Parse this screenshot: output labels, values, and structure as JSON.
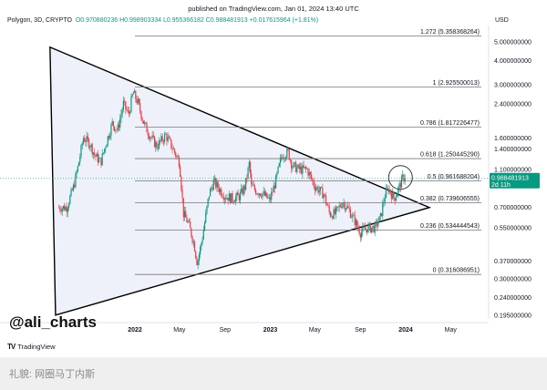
{
  "header": {
    "published": "published on TradingView.com, Jan 01, 2024 13:40 UTC",
    "symbol": "Polygon, 3D, CRYPTO",
    "ohlc_o": "O0.970880236",
    "ohlc_h": "H0.998903334",
    "ohlc_l": "L0.955366182",
    "ohlc_c": "C0.988481913",
    "change": "+0.017615964 (+1.81%)",
    "currency": "USD"
  },
  "chart_data": {
    "type": "line",
    "title": "",
    "xlabel": "",
    "ylabel": "",
    "x_ticks": [
      "2022",
      "May",
      "Sep",
      "2023",
      "May",
      "Sep",
      "2024",
      "May"
    ],
    "x_ticks_bold": [
      true,
      false,
      false,
      true,
      false,
      false,
      true,
      false
    ],
    "y_scale": "log",
    "y_ticks": [
      "5.000000000",
      "4.000000000",
      "3.000000000",
      "2.400000000",
      "1.600000000",
      "1.400000000",
      "1.100000000",
      "0.700000000",
      "0.550000000",
      "0.370000000",
      "0.300000000",
      "0.240000000",
      "0.195000000"
    ],
    "last_price": {
      "value": "0.988481913",
      "countdown": "2d 11h"
    },
    "fib_levels": [
      {
        "label": "1.272 (5.358368264)",
        "value": 5.358368264
      },
      {
        "label": "1 (2.925500013)",
        "value": 2.925500013
      },
      {
        "label": "0.786 (1.817226477)",
        "value": 1.817226477
      },
      {
        "label": "0.618 (1.250445290)",
        "value": 1.25044529
      },
      {
        "label": "0.5 (0.961688204)",
        "value": 0.961688204
      },
      {
        "label": "0.382 (0.739606555)",
        "value": 0.739606555
      },
      {
        "label": "0.236 (0.534444543)",
        "value": 0.534444543
      },
      {
        "label": "0 (0.316086951)",
        "value": 0.316086951
      }
    ],
    "series": [
      {
        "dates": [
          "2021-07-01",
          "2021-07-20",
          "2021-08-01",
          "2021-08-15",
          "2021-09-01",
          "2021-09-15",
          "2021-10-01",
          "2021-10-15",
          "2021-11-01",
          "2021-11-15",
          "2021-12-01",
          "2021-12-15",
          "2021-12-27",
          "2022-01-10",
          "2022-01-25",
          "2022-02-10",
          "2022-03-01",
          "2022-03-25",
          "2022-04-10",
          "2022-05-01",
          "2022-05-12",
          "2022-05-25",
          "2022-06-10",
          "2022-06-18",
          "2022-07-01",
          "2022-07-20",
          "2022-08-01",
          "2022-08-15",
          "2022-09-01",
          "2022-09-20",
          "2022-10-10",
          "2022-10-25",
          "2022-11-06",
          "2022-11-10",
          "2022-11-25",
          "2022-12-10",
          "2022-12-30",
          "2023-01-15",
          "2023-02-01",
          "2023-02-18",
          "2023-03-01",
          "2023-03-20",
          "2023-04-10",
          "2023-05-01",
          "2023-05-25",
          "2023-06-10",
          "2023-06-25",
          "2023-07-15",
          "2023-08-01",
          "2023-08-20",
          "2023-09-01",
          "2023-09-20",
          "2023-10-10",
          "2023-10-25",
          "2023-11-05",
          "2023-11-15",
          "2023-12-01",
          "2023-12-15",
          "2023-12-25",
          "2024-01-01"
        ],
        "close": [
          0.7,
          0.9,
          1.15,
          1.6,
          1.5,
          1.3,
          1.2,
          1.5,
          1.9,
          1.75,
          2.4,
          2.1,
          2.75,
          2.4,
          1.9,
          1.65,
          1.45,
          1.65,
          1.45,
          1.2,
          0.65,
          0.58,
          0.45,
          0.36,
          0.48,
          0.82,
          0.95,
          0.88,
          0.8,
          0.78,
          0.8,
          0.9,
          1.2,
          0.9,
          0.85,
          0.83,
          0.76,
          0.95,
          1.3,
          1.35,
          1.15,
          1.1,
          1.1,
          0.9,
          0.82,
          0.65,
          0.65,
          0.75,
          0.68,
          0.58,
          0.52,
          0.55,
          0.55,
          0.62,
          0.8,
          0.88,
          0.78,
          0.9,
          1.0,
          0.988
        ]
      }
    ],
    "triangle": {
      "upper": [
        {
          "date": "2021-05-17",
          "value": 4.7
        },
        {
          "date": "2024-03-05",
          "value": 0.7
        }
      ],
      "lower": [
        {
          "date": "2021-06-01",
          "value": 0.195
        },
        {
          "date": "2024-03-05",
          "value": 0.7
        }
      ]
    }
  },
  "watermark": "@ali_charts",
  "tv_logo": {
    "mark": "TV",
    "text": "TradingView"
  },
  "footer": "礼貌: 网圈马丁内斯",
  "colors": {
    "up": "#089981",
    "down": "#f23645",
    "fill": "#eef1f9",
    "price_tag": "#089981"
  }
}
